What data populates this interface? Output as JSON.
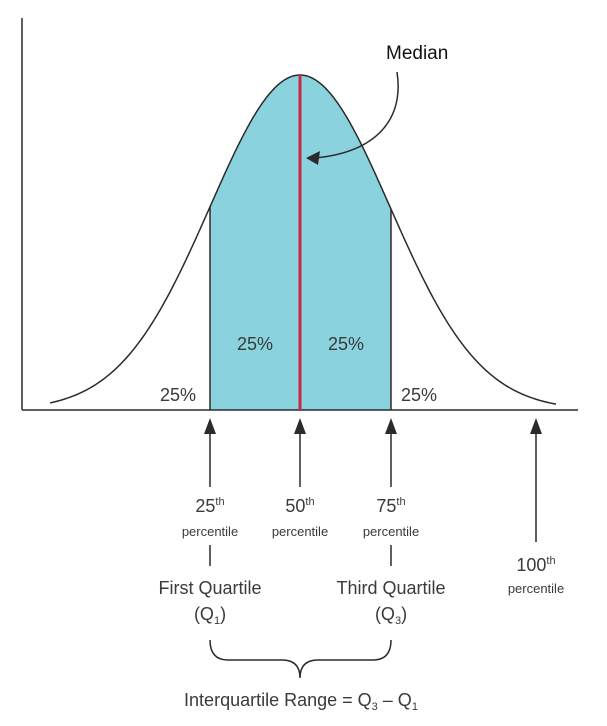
{
  "colors": {
    "fill": "#8ad3de",
    "curve": "#2b2b2b",
    "median_line": "#c8283f",
    "axis": "#2b2b2b",
    "text": "#3a3a3a"
  },
  "median_label": "Median",
  "regions": {
    "left_tail": "25%",
    "q1_to_median": "25%",
    "median_to_q3": "25%",
    "right_tail": "25%"
  },
  "percentiles": [
    {
      "number": "25",
      "suffix": "th",
      "word": "percentile",
      "quartile": "First Quartile",
      "q_base": "(Q",
      "q_sub": "1",
      "q_close": ")"
    },
    {
      "number": "50",
      "suffix": "th",
      "word": "percentile"
    },
    {
      "number": "75",
      "suffix": "th",
      "word": "percentile",
      "quartile": "Third Quartile",
      "q_base": "(Q",
      "q_sub": "3",
      "q_close": ")"
    },
    {
      "number": "100",
      "suffix": "th",
      "word": "percentile"
    }
  ],
  "iqr": {
    "text": "Interquartile Range = Q",
    "sub3": "3",
    "minus": " – Q",
    "sub1": "1"
  }
}
